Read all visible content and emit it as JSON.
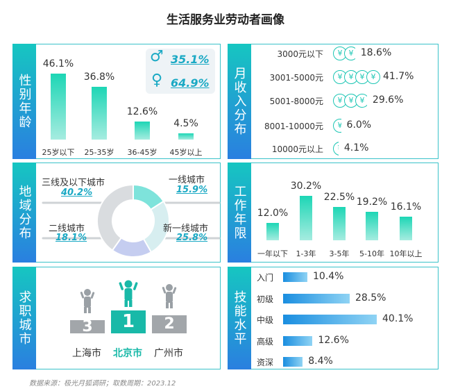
{
  "title": "生活服务业劳动者画像",
  "source": "数据来源：极光月狐调研；取数周期：2023.12",
  "chart_data": [
    {
      "type": "bar",
      "tab": "性别年龄",
      "categories": [
        "25岁以下",
        "25-35岁",
        "36-45岁",
        "45岁以上"
      ],
      "values": [
        46.1,
        36.8,
        12.6,
        4.5
      ],
      "labels": [
        "46.1%",
        "36.8%",
        "12.6%",
        "4.5%"
      ],
      "gender": {
        "male": "35.1%",
        "female": "64.9%",
        "male_icon": "male-icon",
        "female_icon": "female-icon"
      }
    },
    {
      "type": "bar",
      "orientation": "icon-row",
      "tab": "月收入分布",
      "categories": [
        "3000元以下",
        "3001-5000元",
        "5001-8000元",
        "8001-10000元",
        "10000元以上"
      ],
      "values": [
        18.6,
        41.7,
        29.6,
        6.0,
        4.1
      ],
      "labels": [
        "18.6%",
        "41.7%",
        "29.6%",
        "6.0%",
        "4.1%"
      ],
      "coin_symbol": "¥"
    },
    {
      "type": "pie",
      "tab": "地域分布",
      "categories": [
        "一线城市",
        "新一线城市",
        "二线城市",
        "三线及以下城市"
      ],
      "values": [
        15.9,
        25.8,
        18.1,
        40.2
      ],
      "labels": [
        "15.9%",
        "25.8%",
        "18.1%",
        "40.2%"
      ],
      "colors": [
        "#7ee3db",
        "#d7eef0",
        "#c5cdf0",
        "#d9dcdf"
      ]
    },
    {
      "type": "bar",
      "tab": "工作年限",
      "categories": [
        "一年以下",
        "1-3年",
        "3-5年",
        "5-10年",
        "10年以上"
      ],
      "values": [
        12.0,
        30.2,
        22.5,
        19.2,
        16.1
      ],
      "labels": [
        "12.0%",
        "30.2%",
        "22.5%",
        "19.2%",
        "16.1%"
      ]
    },
    {
      "type": "bar",
      "tab": "求职城市",
      "podium": [
        {
          "rank": "3",
          "city": "上海市",
          "highlight": false
        },
        {
          "rank": "1",
          "city": "北京市",
          "highlight": true
        },
        {
          "rank": "2",
          "city": "广州市",
          "highlight": false
        }
      ]
    },
    {
      "type": "bar",
      "orientation": "horizontal",
      "tab": "技能水平",
      "categories": [
        "入门",
        "初级",
        "中级",
        "高级",
        "资深"
      ],
      "values": [
        10.4,
        28.5,
        40.1,
        12.6,
        8.4
      ],
      "labels": [
        "10.4%",
        "28.5%",
        "40.1%",
        "12.6%",
        "8.4%"
      ]
    }
  ]
}
